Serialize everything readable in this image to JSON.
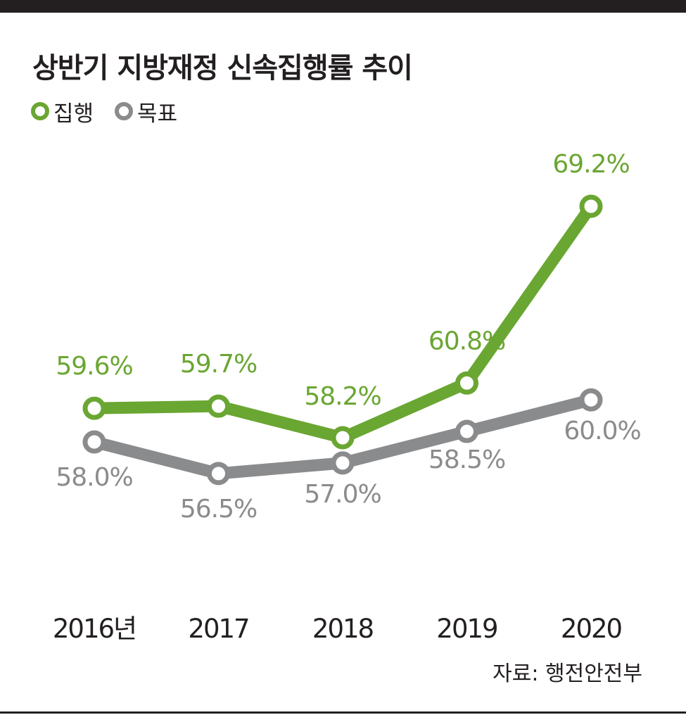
{
  "header": {
    "title": "상반기 지방재정 신속집행률 추이"
  },
  "legend": [
    {
      "name": "집행",
      "color": "#6aa632"
    },
    {
      "name": "목표",
      "color": "#8a8b8d"
    }
  ],
  "source": "자료: 행전안전부",
  "chart_data": {
    "type": "line",
    "title": "상반기 지방재정 신속집행률 추이",
    "categories": [
      "2016년",
      "2017",
      "2018",
      "2019",
      "2020"
    ],
    "series": [
      {
        "name": "집행",
        "color": "#6aa632",
        "values": [
          59.6,
          59.7,
          58.2,
          60.8,
          69.2
        ],
        "labels": [
          "59.6%",
          "59.7%",
          "58.2%",
          "60.8%",
          "69.2%"
        ]
      },
      {
        "name": "목표",
        "color": "#8a8b8d",
        "values": [
          58.0,
          56.5,
          57.0,
          58.5,
          60.0
        ],
        "labels": [
          "58.0%",
          "56.5%",
          "57.0%",
          "58.5%",
          "60.0%"
        ]
      }
    ],
    "xlabel": "",
    "ylabel": "",
    "grid": false,
    "legend_position": "top-left"
  }
}
